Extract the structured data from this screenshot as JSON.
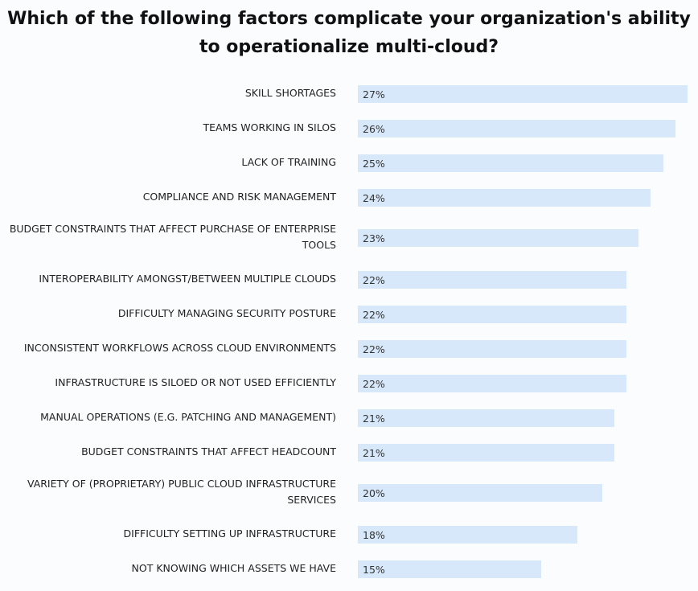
{
  "chart_data": {
    "type": "bar",
    "orientation": "horizontal",
    "title": "Which of the following factors complicate your organization's ability to operationalize multi-cloud?",
    "categories": [
      "SKILL SHORTAGES",
      "TEAMS WORKING IN SILOS",
      "LACK OF TRAINING",
      "COMPLIANCE AND RISK MANAGEMENT",
      "BUDGET CONSTRAINTS THAT AFFECT PURCHASE OF ENTERPRISE TOOLS",
      "INTEROPERABILITY AMONGST/BETWEEN MULTIPLE CLOUDS",
      "DIFFICULTY MANAGING SECURITY POSTURE",
      "INCONSISTENT WORKFLOWS ACROSS CLOUD ENVIRONMENTS",
      "INFRASTRUCTURE IS SILOED OR NOT USED EFFICIENTLY",
      "MANUAL OPERATIONS (E.G. PATCHING AND MANAGEMENT)",
      "BUDGET CONSTRAINTS THAT AFFECT HEADCOUNT",
      "VARIETY OF (PROPRIETARY) PUBLIC CLOUD INFRASTRUCTURE SERVICES",
      "DIFFICULTY SETTING UP INFRASTRUCTURE",
      "NOT KNOWING WHICH ASSETS WE HAVE"
    ],
    "values": [
      27,
      26,
      25,
      24,
      23,
      22,
      22,
      22,
      22,
      21,
      21,
      20,
      18,
      15
    ],
    "value_labels": [
      "27%",
      "26%",
      "25%",
      "24%",
      "23%",
      "22%",
      "22%",
      "22%",
      "22%",
      "21%",
      "21%",
      "20%",
      "18%",
      "15%"
    ],
    "xlim": [
      0,
      27
    ],
    "bar_color": "#d7e8fb",
    "grid": false,
    "legend": false
  }
}
